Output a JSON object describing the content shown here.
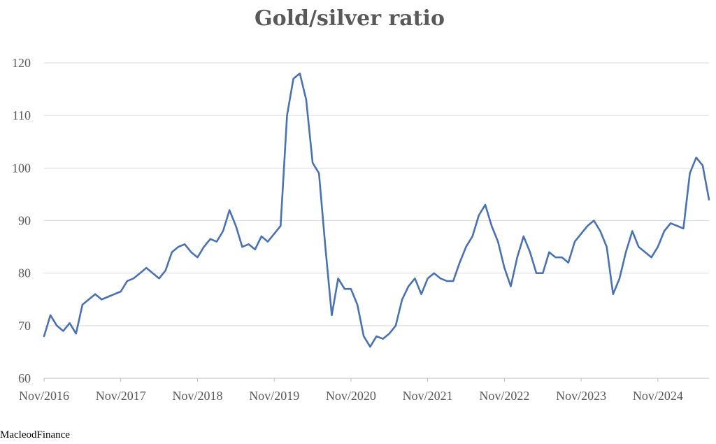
{
  "chart_data": {
    "type": "line",
    "title": "Gold/silver ratio",
    "xlabel": "",
    "ylabel": "",
    "ylim": [
      60,
      120
    ],
    "yticks": [
      60,
      70,
      80,
      90,
      100,
      110,
      120
    ],
    "xlim": [
      "2016-11",
      "2025-07"
    ],
    "xticks": [
      "Nov/2016",
      "Nov/2017",
      "Nov/2018",
      "Nov/2019",
      "Nov/2020",
      "Nov/2021",
      "Nov/2022",
      "Nov/2023",
      "Nov/2024"
    ],
    "grid": "horizontal",
    "legend": "none",
    "series_color": "#4a72b0",
    "series": [
      {
        "x": [
          "2016-11",
          "2016-12",
          "2017-01",
          "2017-02",
          "2017-03",
          "2017-04",
          "2017-05",
          "2017-06",
          "2017-07",
          "2017-08",
          "2017-09",
          "2017-10",
          "2017-11",
          "2017-12",
          "2018-01",
          "2018-02",
          "2018-03",
          "2018-04",
          "2018-05",
          "2018-06",
          "2018-07",
          "2018-08",
          "2018-09",
          "2018-10",
          "2018-11",
          "2018-12",
          "2019-01",
          "2019-02",
          "2019-03",
          "2019-04",
          "2019-05",
          "2019-06",
          "2019-07",
          "2019-08",
          "2019-09",
          "2019-10",
          "2019-11",
          "2019-12",
          "2020-01",
          "2020-02",
          "2020-03",
          "2020-04",
          "2020-05",
          "2020-06",
          "2020-07",
          "2020-08",
          "2020-09",
          "2020-10",
          "2020-11",
          "2020-12",
          "2021-01",
          "2021-02",
          "2021-03",
          "2021-04",
          "2021-05",
          "2021-06",
          "2021-07",
          "2021-08",
          "2021-09",
          "2021-10",
          "2021-11",
          "2021-12",
          "2022-01",
          "2022-02",
          "2022-03",
          "2022-04",
          "2022-05",
          "2022-06",
          "2022-07",
          "2022-08",
          "2022-09",
          "2022-10",
          "2022-11",
          "2022-12",
          "2023-01",
          "2023-02",
          "2023-03",
          "2023-04",
          "2023-05",
          "2023-06",
          "2023-07",
          "2023-08",
          "2023-09",
          "2023-10",
          "2023-11",
          "2023-12",
          "2024-01",
          "2024-02",
          "2024-03",
          "2024-04",
          "2024-05",
          "2024-06",
          "2024-07",
          "2024-08",
          "2024-09",
          "2024-10",
          "2024-11",
          "2024-12",
          "2025-01",
          "2025-02",
          "2025-03",
          "2025-04",
          "2025-05",
          "2025-06",
          "2025-07"
        ],
        "values": [
          68,
          72,
          70,
          69,
          70.5,
          68.5,
          74,
          75,
          76,
          75,
          75.5,
          76,
          76.5,
          78.5,
          79,
          80,
          81,
          80,
          79,
          80.5,
          84,
          85,
          85.5,
          84,
          83,
          85,
          86.5,
          86,
          88,
          92,
          89,
          85,
          85.5,
          84.5,
          87,
          86,
          87.5,
          89,
          110,
          117,
          118,
          113,
          101,
          99,
          85,
          72,
          79,
          77,
          77,
          74,
          68,
          66,
          68,
          67.5,
          68.5,
          70,
          75,
          77.5,
          79,
          76,
          79,
          80,
          79,
          78.5,
          78.5,
          82,
          85,
          87,
          91,
          93,
          89,
          86,
          81,
          77.5,
          83,
          87,
          84,
          80,
          80,
          84,
          83,
          83,
          82,
          86,
          87.5,
          89,
          90,
          88,
          85,
          76,
          79,
          84,
          88,
          85,
          84,
          83,
          85,
          88,
          89.5,
          89,
          88.5,
          99,
          102,
          100.5,
          94
        ]
      }
    ],
    "source": "MacleodFinance"
  }
}
